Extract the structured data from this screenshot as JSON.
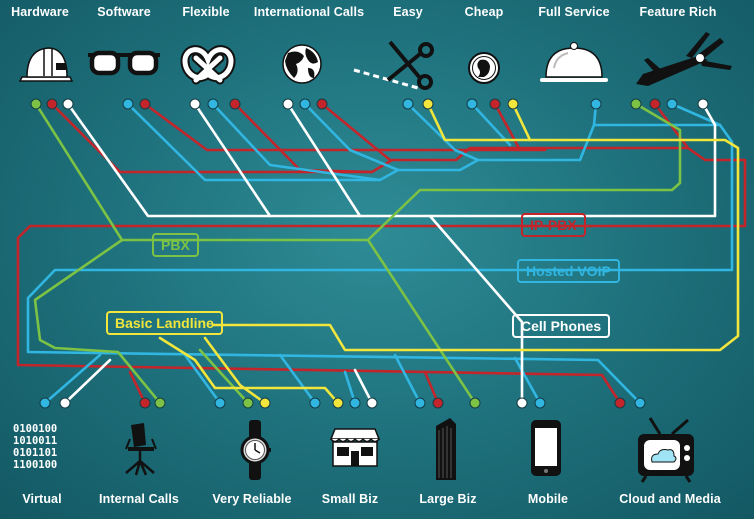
{
  "top_features": [
    {
      "label": "Hardware",
      "icon": "hard-hat-icon"
    },
    {
      "label": "Software",
      "icon": "glasses-icon"
    },
    {
      "label": "Flexible",
      "icon": "pretzel-icon"
    },
    {
      "label": "International Calls",
      "icon": "globe-icon"
    },
    {
      "label": "Easy",
      "icon": "scissors-icon"
    },
    {
      "label": "Cheap",
      "icon": "coin-icon"
    },
    {
      "label": "Full Service",
      "icon": "cloche-icon"
    },
    {
      "label": "Feature Rich",
      "icon": "swiss-knife-icon"
    }
  ],
  "bottom_uses": [
    {
      "label": "Virtual",
      "icon": "binary-code-icon"
    },
    {
      "label": "Internal Calls",
      "icon": "office-chair-icon"
    },
    {
      "label": "Very Reliable",
      "icon": "wristwatch-icon"
    },
    {
      "label": "Small Biz",
      "icon": "storefront-icon"
    },
    {
      "label": "Large Biz",
      "icon": "skyscraper-icon"
    },
    {
      "label": "Mobile",
      "icon": "smartphone-icon"
    },
    {
      "label": "Cloud and Media",
      "icon": "television-icon"
    }
  ],
  "technologies": {
    "pbx": "PBX",
    "ip_pbx": "IP-PBX",
    "hosted_voip": "Hosted VOIP",
    "cell_phones": "Cell Phones",
    "basic_landline": "Basic Landline"
  },
  "colors": {
    "pbx": "#7cc245",
    "ip_pbx": "#c4252b",
    "hosted_voip": "#31b6e2",
    "cell_phones": "#ffffff",
    "basic_landline": "#f2e63d"
  }
}
